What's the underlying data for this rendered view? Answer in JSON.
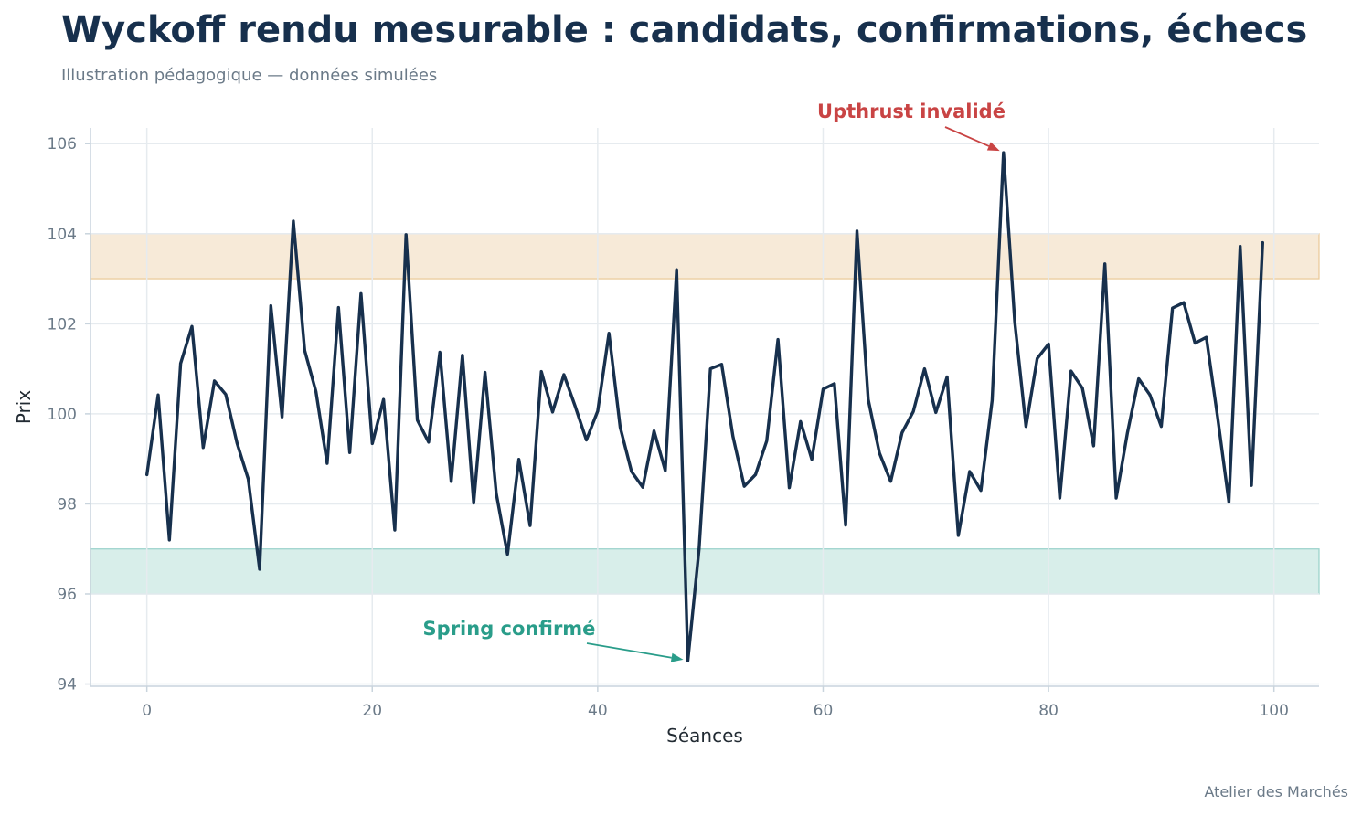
{
  "header": {
    "title": "Wyckoff rendu mesurable : candidats, confirmations, échecs",
    "subtitle": "Illustration pédagogique — données simulées"
  },
  "footer": {
    "credit": "Atelier des Marchés"
  },
  "colors": {
    "line": "#17304d",
    "resistance_band": "#e8c48f",
    "support_band": "#8ecdc4",
    "upthrust": "#c94444",
    "spring": "#2a9d8a",
    "grid": "#e6ebef",
    "axis": "#c9d4dd"
  },
  "chart_data": {
    "type": "line",
    "xlabel": "Séances",
    "ylabel": "Prix",
    "xlim": [
      -5,
      104
    ],
    "ylim": [
      93.95,
      106.35
    ],
    "xticks": [
      0,
      20,
      40,
      60,
      80,
      100
    ],
    "yticks": [
      94,
      96,
      98,
      100,
      102,
      104,
      106
    ],
    "grid": true,
    "bands": [
      {
        "name": "resistance",
        "y0": 103,
        "y1": 104
      },
      {
        "name": "support",
        "y0": 96,
        "y1": 97
      }
    ],
    "series": [
      {
        "x": [
          0,
          1,
          2,
          3,
          4,
          5,
          6,
          7,
          8,
          9,
          10,
          11,
          12,
          13,
          14,
          15,
          16,
          17,
          18,
          19,
          20,
          21,
          22,
          23,
          24,
          25,
          26,
          27,
          28,
          29,
          30,
          31,
          32,
          33,
          34,
          35,
          36,
          37,
          38,
          39,
          40,
          41,
          42,
          43,
          44,
          45,
          46,
          47,
          48,
          49,
          50,
          51,
          52,
          53,
          54,
          55,
          56,
          57,
          58,
          59,
          60,
          61,
          62,
          63,
          64,
          65,
          66,
          67,
          68,
          69,
          70,
          71,
          72,
          73,
          74,
          75,
          76,
          77,
          78,
          79,
          80,
          81,
          82,
          83,
          84,
          85,
          86,
          87,
          88,
          89,
          90,
          91,
          92,
          93,
          94,
          95,
          96,
          97,
          98,
          99
        ],
        "values": [
          98.65,
          100.42,
          97.2,
          101.12,
          101.94,
          99.25,
          100.73,
          100.43,
          99.35,
          98.55,
          96.55,
          102.4,
          99.93,
          104.28,
          101.41,
          100.5,
          98.9,
          102.36,
          99.14,
          102.67,
          99.34,
          100.32,
          97.42,
          103.98,
          99.86,
          99.37,
          101.37,
          98.5,
          101.3,
          98.02,
          100.92,
          98.23,
          96.88,
          98.99,
          97.52,
          100.94,
          100.04,
          100.87,
          100.17,
          99.42,
          100.06,
          101.79,
          99.7,
          98.72,
          98.37,
          99.62,
          98.74,
          103.2,
          94.52,
          97.0,
          101.0,
          101.1,
          99.5,
          98.39,
          98.65,
          99.4,
          101.65,
          98.36,
          99.83,
          98.99,
          100.55,
          100.67,
          97.53,
          104.06,
          100.32,
          99.13,
          98.5,
          99.58,
          100.05,
          101.0,
          100.03,
          100.82,
          97.3,
          98.72,
          98.3,
          100.3,
          105.8,
          102.05,
          99.72,
          101.23,
          101.55,
          98.13,
          100.95,
          100.57,
          99.29,
          103.33,
          98.13,
          99.58,
          100.78,
          100.42,
          99.72,
          102.35,
          102.47,
          101.57,
          101.7,
          99.93,
          98.04,
          103.72,
          98.41,
          103.8
        ]
      }
    ],
    "annotations": [
      {
        "text": "Upthrust invalidé",
        "x": 76,
        "y": 105.8,
        "tone": "upthrust"
      },
      {
        "text": "Spring confirmé",
        "x": 48,
        "y": 94.52,
        "tone": "spring"
      }
    ]
  }
}
